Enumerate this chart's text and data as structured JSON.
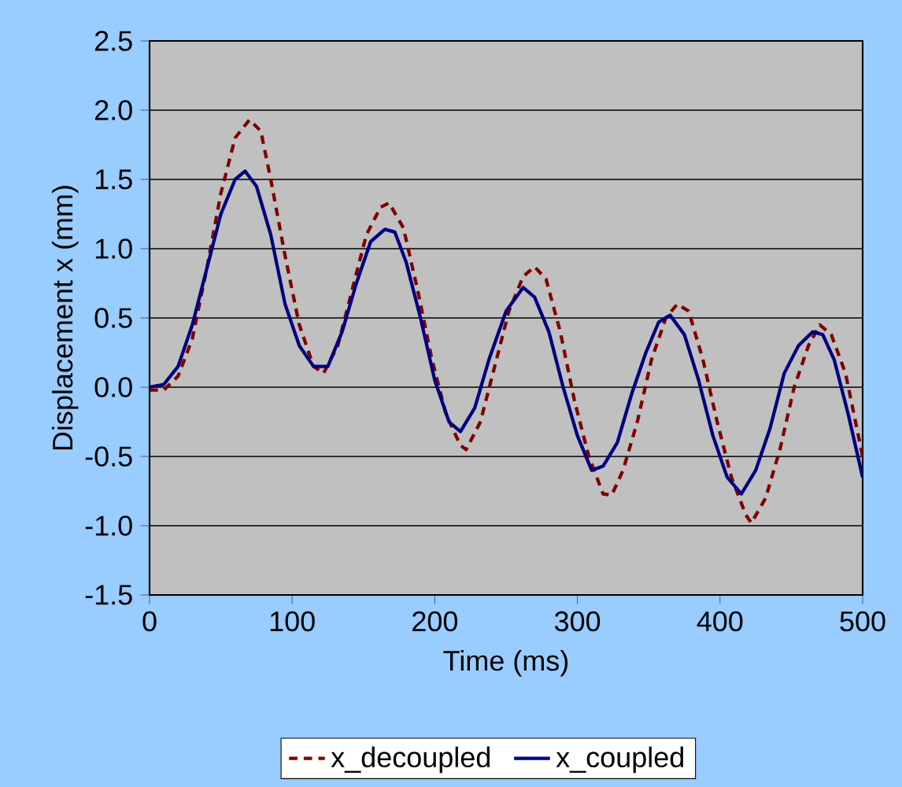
{
  "chart_data": {
    "type": "line",
    "xlabel": "Time (ms)",
    "ylabel": "Displacement x (mm)",
    "xlim": [
      0,
      500
    ],
    "ylim": [
      -1.5,
      2.5
    ],
    "xticks": [
      0,
      100,
      200,
      300,
      400,
      500
    ],
    "yticks": [
      {
        "value": -1.5,
        "label": "-1.5"
      },
      {
        "value": -1.0,
        "label": "-1.0"
      },
      {
        "value": -0.5,
        "label": "-0.5"
      },
      {
        "value": 0,
        "label": "0.0"
      },
      {
        "value": 0.5,
        "label": "0.5"
      },
      {
        "value": 1.0,
        "label": "1.0"
      },
      {
        "value": 1.5,
        "label": "1.5"
      },
      {
        "value": 2.0,
        "label": "2.0"
      },
      {
        "value": 2.5,
        "label": "2.5"
      }
    ],
    "grid": "y",
    "legend": "bottom",
    "marker": "none",
    "series": [
      {
        "name": "x_decoupled",
        "color": "#800000",
        "line_style": "dashed",
        "x": [
          0,
          10,
          20,
          30,
          40,
          50,
          60,
          70,
          78,
          85,
          95,
          105,
          115,
          122,
          132,
          142,
          152,
          162,
          168,
          178,
          188,
          198,
          208,
          218,
          222,
          232,
          242,
          252,
          262,
          270,
          278,
          288,
          298,
          308,
          318,
          324,
          332,
          342,
          352,
          362,
          370,
          378,
          388,
          398,
          408,
          418,
          422,
          432,
          442,
          452,
          462,
          470,
          478,
          488,
          500
        ],
        "values": [
          -0.02,
          -0.02,
          0.08,
          0.35,
          0.85,
          1.4,
          1.8,
          1.93,
          1.85,
          1.5,
          0.95,
          0.45,
          0.15,
          0.1,
          0.3,
          0.7,
          1.1,
          1.3,
          1.33,
          1.15,
          0.7,
          0.2,
          -0.2,
          -0.42,
          -0.45,
          -0.25,
          0.15,
          0.55,
          0.8,
          0.87,
          0.78,
          0.4,
          -0.1,
          -0.5,
          -0.77,
          -0.78,
          -0.6,
          -0.25,
          0.2,
          0.5,
          0.6,
          0.55,
          0.2,
          -0.25,
          -0.65,
          -0.92,
          -0.98,
          -0.8,
          -0.45,
          0.0,
          0.3,
          0.45,
          0.38,
          0.1,
          -0.5
        ]
      },
      {
        "name": "x_coupled",
        "color": "#000080",
        "line_style": "solid",
        "x": [
          0,
          10,
          20,
          30,
          40,
          50,
          60,
          67,
          75,
          85,
          95,
          105,
          115,
          125,
          135,
          145,
          155,
          165,
          172,
          180,
          190,
          200,
          210,
          218,
          228,
          238,
          250,
          262,
          270,
          280,
          290,
          300,
          310,
          318,
          328,
          338,
          348,
          357,
          365,
          375,
          385,
          395,
          405,
          415,
          425,
          435,
          445,
          455,
          465,
          472,
          480,
          490,
          500
        ],
        "values": [
          0.0,
          0.02,
          0.15,
          0.45,
          0.85,
          1.25,
          1.5,
          1.56,
          1.45,
          1.1,
          0.6,
          0.3,
          0.15,
          0.15,
          0.4,
          0.75,
          1.05,
          1.14,
          1.12,
          0.9,
          0.5,
          0.05,
          -0.25,
          -0.32,
          -0.15,
          0.2,
          0.55,
          0.72,
          0.65,
          0.4,
          0.0,
          -0.35,
          -0.6,
          -0.57,
          -0.4,
          -0.05,
          0.25,
          0.47,
          0.52,
          0.38,
          0.05,
          -0.35,
          -0.65,
          -0.77,
          -0.6,
          -0.3,
          0.1,
          0.3,
          0.4,
          0.38,
          0.2,
          -0.2,
          -0.65
        ]
      }
    ]
  }
}
